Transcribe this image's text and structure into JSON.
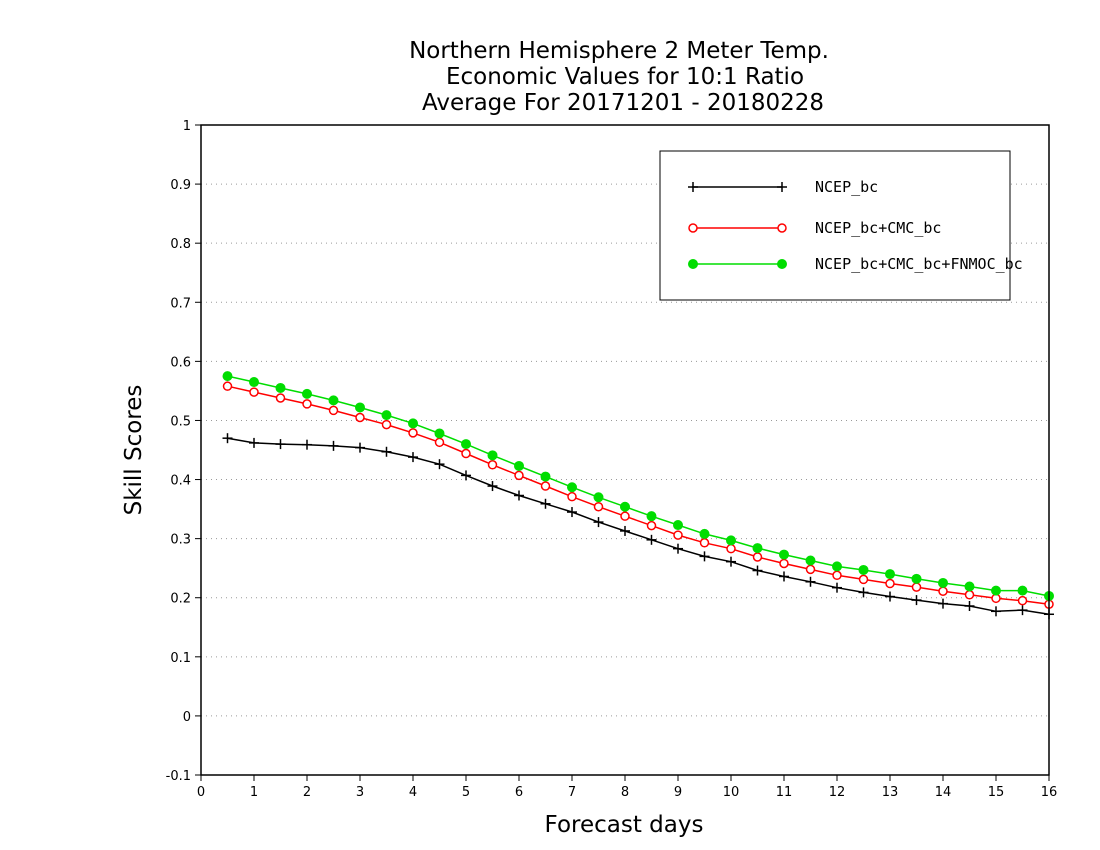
{
  "chart_data": {
    "type": "line",
    "title_lines": [
      "Northern Hemisphere 2 Meter Temp.",
      "Economic Values for 10:1 Ratio",
      "Average For 20171201 - 20180228"
    ],
    "xlabel": "Forecast days",
    "ylabel": "Skill Scores",
    "xlim": [
      0,
      16
    ],
    "ylim": [
      -0.1,
      1
    ],
    "xticks": [
      0,
      1,
      2,
      3,
      4,
      5,
      6,
      7,
      8,
      9,
      10,
      11,
      12,
      13,
      14,
      15,
      16
    ],
    "yticks": [
      -0.1,
      0,
      0.1,
      0.2,
      0.3,
      0.4,
      0.5,
      0.6,
      0.7,
      0.8,
      0.9,
      1
    ],
    "ytick_labels": [
      "-0.1",
      "0",
      "0.1",
      "0.2",
      "0.3",
      "0.4",
      "0.5",
      "0.6",
      "0.7",
      "0.8",
      "0.9",
      "1"
    ],
    "grid": "horizontal dotted",
    "legend_position": "top-right",
    "x": [
      0.5,
      1,
      1.5,
      2,
      2.5,
      3,
      3.5,
      4,
      4.5,
      5,
      5.5,
      6,
      6.5,
      7,
      7.5,
      8,
      8.5,
      9,
      9.5,
      10,
      10.5,
      11,
      11.5,
      12,
      12.5,
      13,
      13.5,
      14,
      14.5,
      15,
      15.5,
      16
    ],
    "series": [
      {
        "name": "NCEP_bc",
        "color": "#000000",
        "marker": "plus",
        "values": [
          0.47,
          0.462,
          0.46,
          0.459,
          0.457,
          0.454,
          0.447,
          0.438,
          0.426,
          0.407,
          0.389,
          0.373,
          0.359,
          0.345,
          0.328,
          0.313,
          0.298,
          0.283,
          0.27,
          0.261,
          0.246,
          0.236,
          0.227,
          0.217,
          0.209,
          0.202,
          0.196,
          0.19,
          0.186,
          0.177,
          0.179,
          0.172
        ]
      },
      {
        "name": "NCEP_bc+CMC_bc",
        "color": "#ff0000",
        "marker": "open-circle",
        "values": [
          0.558,
          0.548,
          0.538,
          0.528,
          0.517,
          0.505,
          0.493,
          0.479,
          0.463,
          0.444,
          0.425,
          0.407,
          0.389,
          0.371,
          0.354,
          0.338,
          0.322,
          0.306,
          0.293,
          0.283,
          0.269,
          0.258,
          0.248,
          0.238,
          0.231,
          0.224,
          0.218,
          0.211,
          0.205,
          0.199,
          0.195,
          0.189
        ]
      },
      {
        "name": "NCEP_bc+CMC_bc+FNMOC_bc",
        "color": "#00dd00",
        "marker": "filled-circle",
        "values": [
          0.575,
          0.565,
          0.555,
          0.545,
          0.534,
          0.522,
          0.509,
          0.495,
          0.478,
          0.46,
          0.441,
          0.423,
          0.405,
          0.387,
          0.37,
          0.354,
          0.338,
          0.323,
          0.308,
          0.297,
          0.284,
          0.273,
          0.263,
          0.253,
          0.247,
          0.24,
          0.232,
          0.225,
          0.219,
          0.212,
          0.212,
          0.203
        ]
      }
    ]
  }
}
